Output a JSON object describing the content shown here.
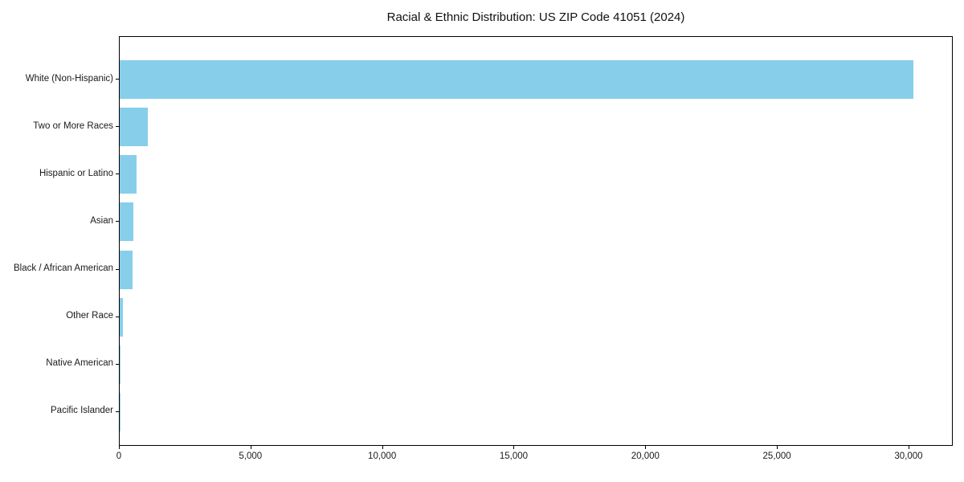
{
  "chart_data": {
    "type": "bar",
    "orientation": "horizontal",
    "title": "Racial & Ethnic Distribution: US ZIP Code 41051 (2024)",
    "categories": [
      "White (Non-Hispanic)",
      "Two or More Races",
      "Hispanic or Latino",
      "Asian",
      "Black / African American",
      "Other Race",
      "Native American",
      "Pacific Islander"
    ],
    "values": [
      30150,
      1070,
      650,
      520,
      500,
      110,
      25,
      10
    ],
    "xlabel": "",
    "ylabel": "",
    "xlim": [
      0,
      31680
    ],
    "x_ticks": [
      0,
      5000,
      10000,
      15000,
      20000,
      25000,
      30000
    ],
    "x_tick_labels": [
      "0",
      "5,000",
      "10,000",
      "15,000",
      "20,000",
      "25,000",
      "30,000"
    ],
    "bar_color": "#87CEEB",
    "background_color": "#ffffff",
    "grid": false,
    "legend": "none"
  }
}
